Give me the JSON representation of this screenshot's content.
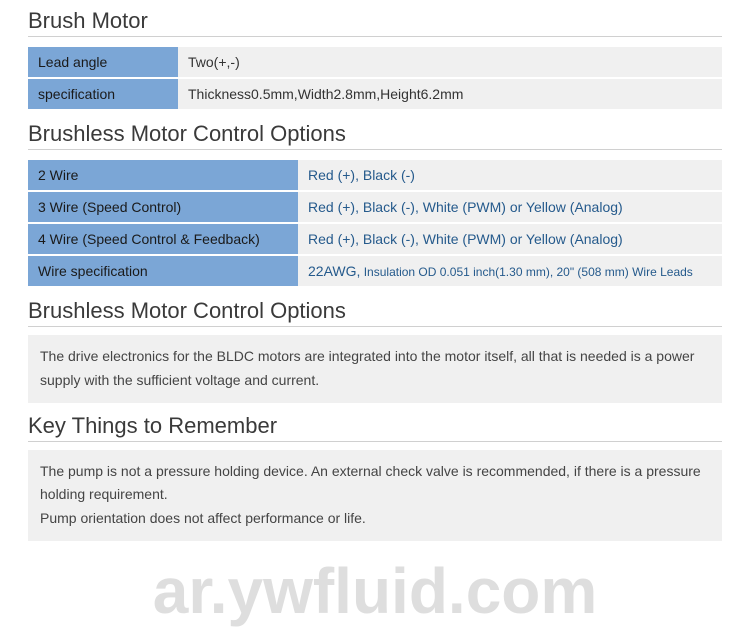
{
  "sections": {
    "s1": {
      "title": "Brush Motor",
      "rows": [
        {
          "label": "Lead angle",
          "value": "Two(+,-)"
        },
        {
          "label": "specification",
          "value": "Thickness0.5mm,Width2.8mm,Height6.2mm"
        }
      ]
    },
    "s2": {
      "title": "Brushless Motor Control Options",
      "rows": [
        {
          "label": "2 Wire",
          "value": "Red (+), Black (-)"
        },
        {
          "label": "3 Wire (Speed Control)",
          "value": "Red (+), Black (-), White (PWM) or Yellow (Analog)"
        },
        {
          "label": "4 Wire (Speed Control & Feedback)",
          "value": "Red (+), Black (-), White (PWM) or Yellow (Analog)"
        },
        {
          "label": "Wire specification",
          "value": "22AWG,",
          "value_tail": " Insulation OD 0.051 inch(1.30 mm), 20\" (508 mm) Wire Leads"
        }
      ]
    },
    "s3": {
      "title": "Brushless Motor Control Options",
      "text": "The drive electronics for the BLDC motors are integrated into the motor itself, all that is needed is a power supply with the sufficient voltage and current."
    },
    "s4": {
      "title": "Key Things to Remember",
      "text": "The pump is not a pressure holding device. An external check valve is recommended, if there is a pressure holding requirement.\nPump orientation does not affect performance or life."
    }
  },
  "watermark": "ar.ywfluid.com",
  "colors": {
    "label_bg": "#7ba6d6",
    "value_bg": "#f0f0f0",
    "title_color": "#3a3a3a",
    "link_color": "#255a8c"
  }
}
